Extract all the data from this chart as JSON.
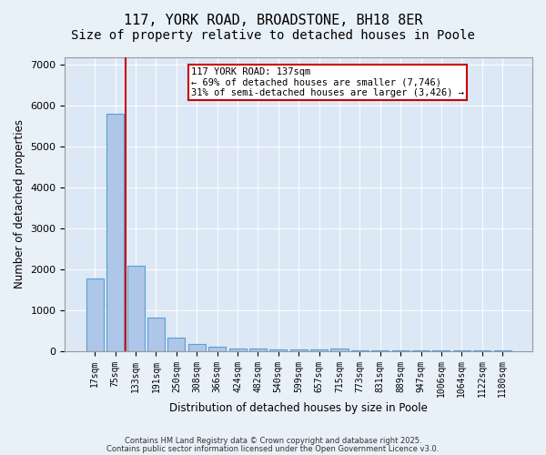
{
  "title1": "117, YORK ROAD, BROADSTONE, BH18 8ER",
  "title2": "Size of property relative to detached houses in Poole",
  "xlabel": "Distribution of detached houses by size in Poole",
  "ylabel": "Number of detached properties",
  "categories": [
    "17sqm",
    "75sqm",
    "133sqm",
    "191sqm",
    "250sqm",
    "308sqm",
    "366sqm",
    "424sqm",
    "482sqm",
    "540sqm",
    "599sqm",
    "657sqm",
    "715sqm",
    "773sqm",
    "831sqm",
    "889sqm",
    "947sqm",
    "1006sqm",
    "1064sqm",
    "1122sqm",
    "1180sqm"
  ],
  "values": [
    1780,
    5800,
    2080,
    820,
    330,
    170,
    100,
    65,
    55,
    40,
    30,
    25,
    55,
    5,
    5,
    5,
    5,
    5,
    5,
    5,
    5
  ],
  "bar_color": "#aec6e8",
  "bar_edge_color": "#5a9fd4",
  "highlight_bar_index": 2,
  "highlight_color": "#cc0000",
  "annotation_line1": "117 YORK ROAD: 137sqm",
  "annotation_line2": "← 69% of detached houses are smaller (7,746)",
  "annotation_line3": "31% of semi-detached houses are larger (3,426) →",
  "annotation_box_color": "#ffffff",
  "annotation_box_edge": "#cc0000",
  "ylim": [
    0,
    7200
  ],
  "yticks": [
    0,
    1000,
    2000,
    3000,
    4000,
    5000,
    6000,
    7000
  ],
  "background_color": "#e8f0f8",
  "plot_bg_color": "#dce8f5",
  "footer1": "Contains HM Land Registry data © Crown copyright and database right 2025.",
  "footer2": "Contains public sector information licensed under the Open Government Licence v3.0.",
  "title_fontsize": 11,
  "subtitle_fontsize": 10
}
